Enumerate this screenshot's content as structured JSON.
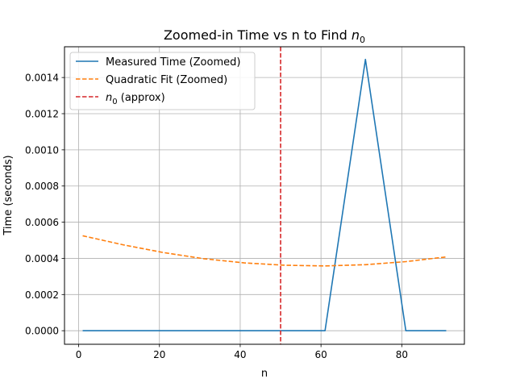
{
  "chart_data": {
    "type": "line",
    "title": "Zoomed-in Time vs n to Find",
    "title_math": "n",
    "title_math_sub": "0",
    "xlabel": "n",
    "ylabel": "Time (seconds)",
    "xlim": [
      -3.5,
      95.5
    ],
    "ylim": [
      -7.5e-05,
      0.00157
    ],
    "xticks": [
      0,
      20,
      40,
      60,
      80
    ],
    "xtick_labels": [
      "0",
      "20",
      "40",
      "60",
      "80"
    ],
    "yticks": [
      0,
      0.0002,
      0.0004,
      0.0006,
      0.0008,
      0.001,
      0.0012,
      0.0014
    ],
    "ytick_labels": [
      "0.0000",
      "0.0002",
      "0.0004",
      "0.0006",
      "0.0008",
      "0.0010",
      "0.0012",
      "0.0014"
    ],
    "grid": true,
    "legend_position": "top-left",
    "series": [
      {
        "name": "Measured Time (Zoomed)",
        "style": "solid",
        "color": "#1f77b4",
        "x": [
          1,
          11,
          21,
          31,
          41,
          51,
          61,
          71,
          81,
          91
        ],
        "y": [
          0,
          0,
          0,
          0,
          0,
          0,
          0,
          0.0015,
          0,
          0
        ]
      },
      {
        "name": "Quadratic Fit (Zoomed)",
        "style": "dashed",
        "color": "#ff7f0e",
        "x": [
          1,
          11,
          21,
          31,
          41,
          51,
          61,
          71,
          81,
          91
        ],
        "y": [
          0.000525,
          0.000475,
          0.000432,
          0.000398,
          0.000375,
          0.000362,
          0.000358,
          0.000365,
          0.000382,
          0.000408
        ]
      }
    ],
    "vlines": [
      {
        "name_math": "n",
        "name_math_sub": "0",
        "name_suffix": "(approx)",
        "x": 50,
        "color": "#d62728",
        "style": "dashed"
      }
    ]
  }
}
